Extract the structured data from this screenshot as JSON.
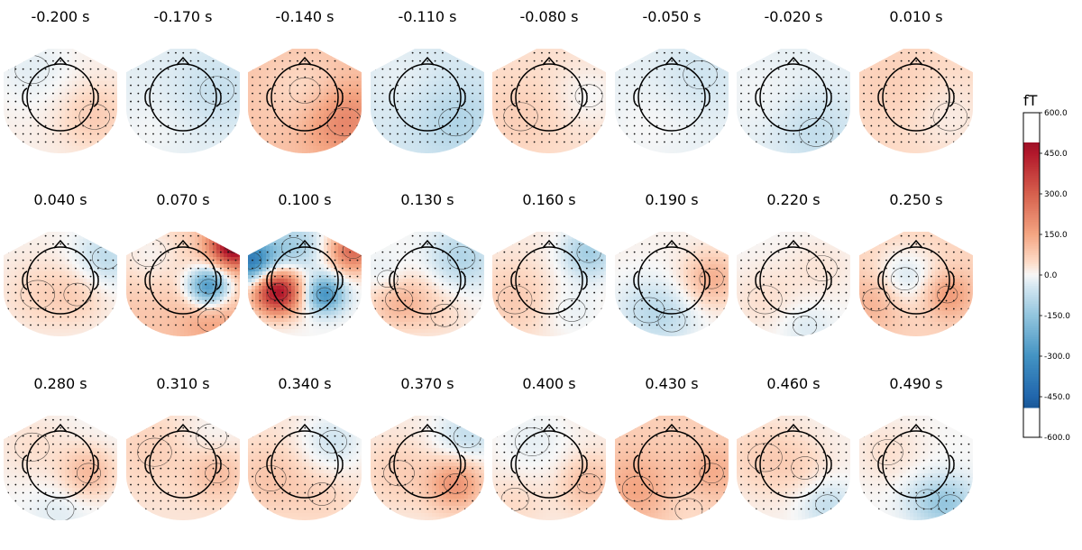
{
  "chart_data": {
    "type": "heatmap",
    "times": [
      "-0.200 s",
      "-0.170 s",
      "-0.140 s",
      "-0.110 s",
      "-0.080 s",
      "-0.050 s",
      "-0.020 s",
      "0.010 s",
      "0.040 s",
      "0.070 s",
      "0.100 s",
      "0.130 s",
      "0.160 s",
      "0.190 s",
      "0.220 s",
      "0.250 s",
      "0.280 s",
      "0.310 s",
      "0.340 s",
      "0.370 s",
      "0.400 s",
      "0.430 s",
      "0.460 s",
      "0.490 s"
    ],
    "colorbar": {
      "unit": "fT",
      "ticks": [
        "600.0",
        "450.0",
        "300.0",
        "150.0",
        "0.0",
        "-150.0",
        "-300.0",
        "-450.0",
        "-600.0"
      ],
      "range": [
        -600,
        600
      ],
      "colormap": "RdBu_r",
      "displayed_range": [
        -490,
        490
      ]
    },
    "maps": [
      {
        "base": 15,
        "blobs": [
          [
            0.6,
            0.3,
            60,
            0.45
          ],
          [
            -0.5,
            -0.6,
            -40,
            0.5
          ]
        ]
      },
      {
        "base": -25,
        "blobs": [
          [
            0.6,
            -0.2,
            -40,
            0.5
          ],
          [
            -0.6,
            0.6,
            20,
            0.45
          ]
        ]
      },
      {
        "base": 90,
        "blobs": [
          [
            0.7,
            0.4,
            130,
            0.5
          ],
          [
            0.0,
            -0.2,
            -50,
            0.45
          ]
        ]
      },
      {
        "base": -40,
        "blobs": [
          [
            0.5,
            0.4,
            -60,
            0.5
          ],
          [
            -0.5,
            -0.5,
            20,
            0.45
          ]
        ]
      },
      {
        "base": 40,
        "blobs": [
          [
            0.7,
            -0.1,
            -40,
            0.4
          ],
          [
            -0.5,
            0.3,
            30,
            0.5
          ]
        ]
      },
      {
        "base": -20,
        "blobs": [
          [
            0.5,
            -0.5,
            -30,
            0.5
          ],
          [
            -0.4,
            0.5,
            20,
            0.5
          ]
        ]
      },
      {
        "base": -20,
        "blobs": [
          [
            0.4,
            0.6,
            -50,
            0.5
          ],
          [
            -0.6,
            -0.1,
            15,
            0.45
          ]
        ]
      },
      {
        "base": 50,
        "blobs": [
          [
            0.6,
            0.3,
            -30,
            0.5
          ],
          [
            -0.4,
            -0.3,
            20,
            0.5
          ]
        ]
      },
      {
        "base": 10,
        "blobs": [
          [
            0.8,
            -0.5,
            -90,
            0.4
          ],
          [
            -0.4,
            0.2,
            40,
            0.5
          ],
          [
            0.3,
            0.2,
            50,
            0.4
          ]
        ]
      },
      {
        "base": 90,
        "blobs": [
          [
            0.9,
            -0.75,
            480,
            0.28
          ],
          [
            0.45,
            0.05,
            -370,
            0.26
          ],
          [
            -0.6,
            -0.6,
            -80,
            0.5
          ],
          [
            0.5,
            0.7,
            60,
            0.4
          ]
        ]
      },
      {
        "base": 0,
        "blobs": [
          [
            -0.48,
            0.15,
            480,
            0.3
          ],
          [
            -0.95,
            -0.45,
            -380,
            0.3
          ],
          [
            0.35,
            0.2,
            -300,
            0.24
          ],
          [
            0.85,
            -0.65,
            280,
            0.3
          ],
          [
            -0.2,
            -0.7,
            -120,
            0.35
          ]
        ]
      },
      {
        "base": 0,
        "blobs": [
          [
            -0.5,
            0.3,
            130,
            0.4
          ],
          [
            0.6,
            -0.5,
            -100,
            0.4
          ],
          [
            -0.7,
            -0.1,
            -60,
            0.3
          ],
          [
            0.3,
            0.6,
            40,
            0.4
          ]
        ]
      },
      {
        "base": 20,
        "blobs": [
          [
            -0.6,
            0.3,
            60,
            0.5
          ],
          [
            0.7,
            -0.6,
            -140,
            0.35
          ],
          [
            0.4,
            0.5,
            -40,
            0.4
          ]
        ]
      },
      {
        "base": 10,
        "blobs": [
          [
            0.7,
            -0.1,
            120,
            0.35
          ],
          [
            -0.4,
            0.5,
            -70,
            0.45
          ],
          [
            0.0,
            0.7,
            -40,
            0.4
          ]
        ]
      },
      {
        "base": 0,
        "blobs": [
          [
            -0.5,
            0.3,
            40,
            0.5
          ],
          [
            0.5,
            -0.3,
            30,
            0.45
          ],
          [
            0.2,
            0.8,
            -40,
            0.35
          ]
        ]
      },
      {
        "base": 60,
        "blobs": [
          [
            -0.2,
            -0.1,
            -110,
            0.4
          ],
          [
            0.55,
            0.2,
            120,
            0.3
          ],
          [
            -0.7,
            0.3,
            80,
            0.4
          ]
        ]
      },
      {
        "base": 0,
        "blobs": [
          [
            0.5,
            0.1,
            110,
            0.35
          ],
          [
            -0.5,
            -0.4,
            40,
            0.5
          ],
          [
            0.0,
            0.8,
            -30,
            0.4
          ]
        ]
      },
      {
        "base": 30,
        "blobs": [
          [
            0.6,
            0.1,
            80,
            0.35
          ],
          [
            -0.5,
            -0.3,
            40,
            0.5
          ],
          [
            0.5,
            -0.6,
            -30,
            0.45
          ]
        ]
      },
      {
        "base": 30,
        "blobs": [
          [
            -0.6,
            0.2,
            60,
            0.45
          ],
          [
            0.5,
            -0.5,
            -80,
            0.4
          ],
          [
            0.3,
            0.5,
            30,
            0.4
          ]
        ]
      },
      {
        "base": 20,
        "blobs": [
          [
            0.5,
            0.3,
            170,
            0.35
          ],
          [
            0.7,
            -0.6,
            -90,
            0.4
          ],
          [
            -0.5,
            0.1,
            50,
            0.45
          ]
        ]
      },
      {
        "base": 20,
        "blobs": [
          [
            0.7,
            0.3,
            90,
            0.35
          ],
          [
            -0.3,
            -0.5,
            -40,
            0.5
          ],
          [
            -0.6,
            0.6,
            30,
            0.4
          ]
        ]
      },
      {
        "base": 70,
        "blobs": [
          [
            -0.6,
            0.4,
            80,
            0.45
          ],
          [
            0.7,
            0.1,
            70,
            0.35
          ],
          [
            0.3,
            0.8,
            -30,
            0.4
          ]
        ]
      },
      {
        "base": 10,
        "blobs": [
          [
            0.6,
            0.7,
            -80,
            0.35
          ],
          [
            -0.5,
            -0.2,
            60,
            0.5
          ],
          [
            0.2,
            0.0,
            30,
            0.4
          ]
        ]
      },
      {
        "base": 0,
        "blobs": [
          [
            0.6,
            0.7,
            -110,
            0.35
          ],
          [
            -0.5,
            -0.3,
            40,
            0.45
          ],
          [
            0.2,
            0.6,
            -60,
            0.35
          ]
        ]
      }
    ]
  }
}
